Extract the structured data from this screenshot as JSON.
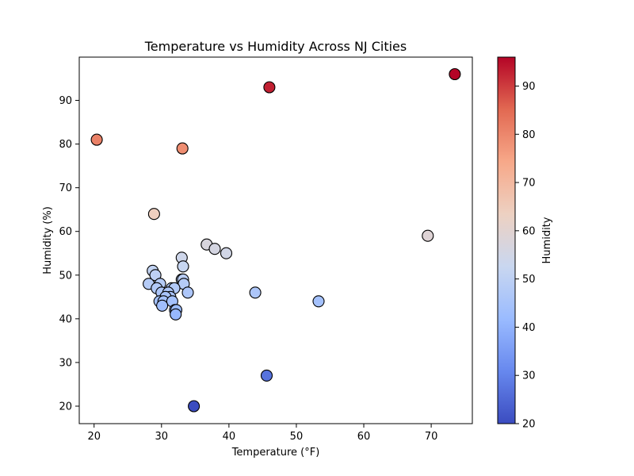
{
  "chart_data": {
    "type": "scatter",
    "title": "Temperature vs Humidity Across NJ Cities",
    "xlabel": "Temperature (°F)",
    "ylabel": "Humidity (%)",
    "xlim": [
      17.8,
      76.1
    ],
    "ylim": [
      16.0,
      99.9
    ],
    "xticks": [
      20,
      30,
      40,
      50,
      60,
      70
    ],
    "yticks": [
      20,
      30,
      40,
      50,
      60,
      70,
      80,
      90
    ],
    "grid": false,
    "legend": "none",
    "color_by": "humidity",
    "colormap": "coolwarm",
    "colorbar": {
      "label": "Humidity",
      "range": [
        20,
        96
      ],
      "ticks": [
        20,
        30,
        40,
        50,
        60,
        70,
        80,
        90
      ],
      "stops": [
        "#3b4cc0",
        "#6788ee",
        "#9abbff",
        "#c9d7f0",
        "#edd1c2",
        "#f7a889",
        "#e26952",
        "#b40426"
      ]
    },
    "points": [
      {
        "x": 20.4,
        "y": 81
      },
      {
        "x": 28.9,
        "y": 64
      },
      {
        "x": 33.1,
        "y": 79
      },
      {
        "x": 46.0,
        "y": 93
      },
      {
        "x": 73.5,
        "y": 96
      },
      {
        "x": 69.5,
        "y": 59
      },
      {
        "x": 36.7,
        "y": 57
      },
      {
        "x": 37.9,
        "y": 56
      },
      {
        "x": 39.6,
        "y": 55
      },
      {
        "x": 33.0,
        "y": 54
      },
      {
        "x": 33.2,
        "y": 52
      },
      {
        "x": 28.7,
        "y": 51
      },
      {
        "x": 29.1,
        "y": 50
      },
      {
        "x": 33.0,
        "y": 49
      },
      {
        "x": 33.2,
        "y": 49
      },
      {
        "x": 33.3,
        "y": 48
      },
      {
        "x": 28.1,
        "y": 48
      },
      {
        "x": 29.8,
        "y": 48
      },
      {
        "x": 29.3,
        "y": 47
      },
      {
        "x": 31.5,
        "y": 47
      },
      {
        "x": 31.9,
        "y": 47
      },
      {
        "x": 30.0,
        "y": 46
      },
      {
        "x": 31.0,
        "y": 46
      },
      {
        "x": 33.9,
        "y": 46
      },
      {
        "x": 43.9,
        "y": 46
      },
      {
        "x": 31.3,
        "y": 45
      },
      {
        "x": 30.6,
        "y": 45
      },
      {
        "x": 29.7,
        "y": 44
      },
      {
        "x": 30.3,
        "y": 44
      },
      {
        "x": 31.6,
        "y": 44
      },
      {
        "x": 53.3,
        "y": 44
      },
      {
        "x": 30.1,
        "y": 43
      },
      {
        "x": 32.0,
        "y": 42
      },
      {
        "x": 32.2,
        "y": 42
      },
      {
        "x": 32.1,
        "y": 41
      },
      {
        "x": 45.6,
        "y": 27
      },
      {
        "x": 34.8,
        "y": 20
      }
    ]
  }
}
